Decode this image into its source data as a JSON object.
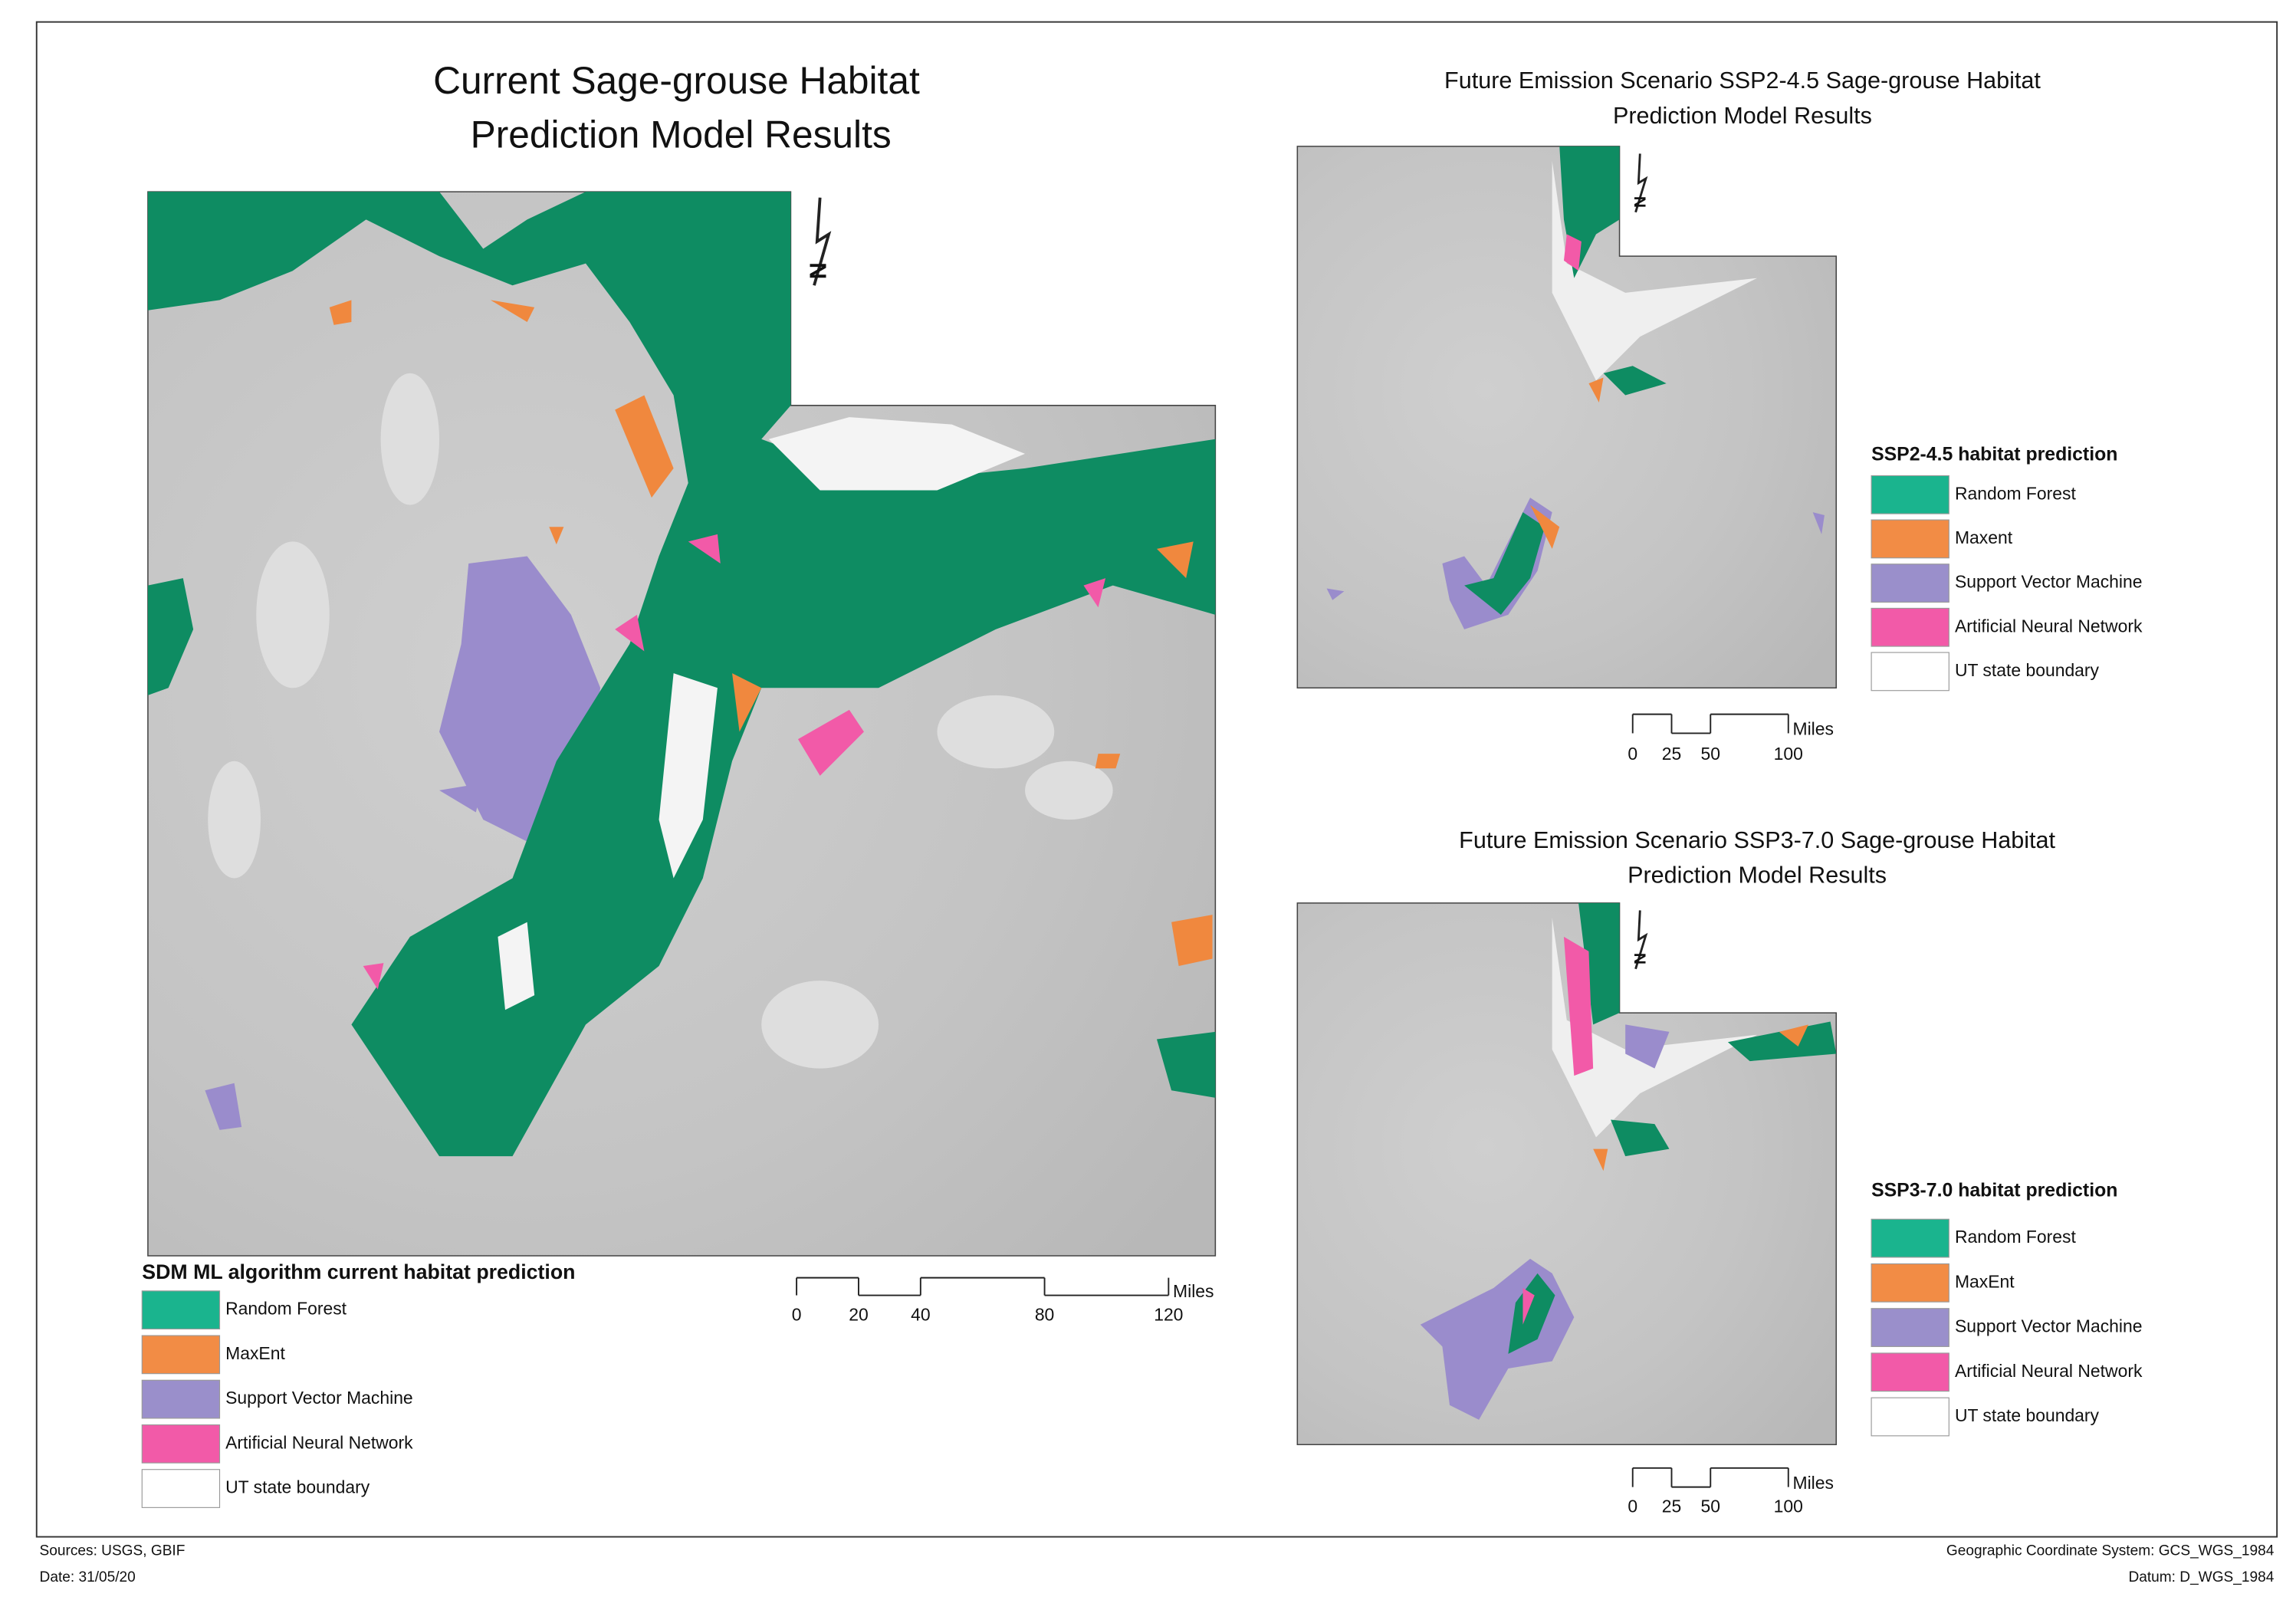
{
  "main_map": {
    "title_lines": [
      "Current Sage-grouse Habitat",
      "Prediction Model Results"
    ],
    "north_label": "N",
    "legend": {
      "title": "SDM ML algorithm current habitat prediction",
      "items": [
        {
          "label": "Random Forest",
          "color": "#1ab48e"
        },
        {
          "label": "MaxEnt",
          "color": "#f28c45"
        },
        {
          "label": "Support Vector Machine",
          "color": "#9a8fcb"
        },
        {
          "label": "Artificial Neural Network",
          "color": "#f25aa8"
        },
        {
          "label": "UT state boundary",
          "color": "#ffffff"
        }
      ]
    },
    "scale_bar": {
      "unit": "Miles",
      "ticks": [
        0,
        20,
        40,
        80,
        120
      ]
    }
  },
  "inset_maps": [
    {
      "title_lines": [
        "Future Emission Scenario SSP2-4.5 Sage-grouse Habitat",
        "Prediction Model Results"
      ],
      "north_label": "N",
      "legend": {
        "title": "SSP2-4.5 habitat prediction",
        "items": [
          {
            "label": "Random Forest",
            "color": "#1ab48e"
          },
          {
            "label": "Maxent",
            "color": "#f28c45"
          },
          {
            "label": "Support Vector Machine",
            "color": "#9a8fcb"
          },
          {
            "label": "Artificial Neural Network",
            "color": "#f25aa8"
          },
          {
            "label": "UT state boundary",
            "color": "#ffffff"
          }
        ]
      },
      "scale_bar": {
        "unit": "Miles",
        "ticks": [
          0,
          25,
          50,
          100
        ]
      }
    },
    {
      "title_lines": [
        "Future Emission Scenario SSP3-7.0 Sage-grouse Habitat",
        "Prediction Model Results"
      ],
      "north_label": "N",
      "legend": {
        "title": "SSP3-7.0 habitat prediction",
        "items": [
          {
            "label": "Random Forest",
            "color": "#1ab48e"
          },
          {
            "label": "MaxEnt",
            "color": "#f28c45"
          },
          {
            "label": "Support Vector Machine",
            "color": "#9a8fcb"
          },
          {
            "label": "Artificial Neural Network",
            "color": "#f25aa8"
          },
          {
            "label": "UT state boundary",
            "color": "#ffffff"
          }
        ]
      },
      "scale_bar": {
        "unit": "Miles",
        "ticks": [
          0,
          25,
          50,
          100
        ]
      }
    }
  ],
  "footer": {
    "sources": "Sources: USGS, GBIF",
    "date": "Date: 31/05/20",
    "coordinate_system": "Geographic Coordinate System: GCS_WGS_1984",
    "datum": "Datum: D_WGS_1984"
  }
}
